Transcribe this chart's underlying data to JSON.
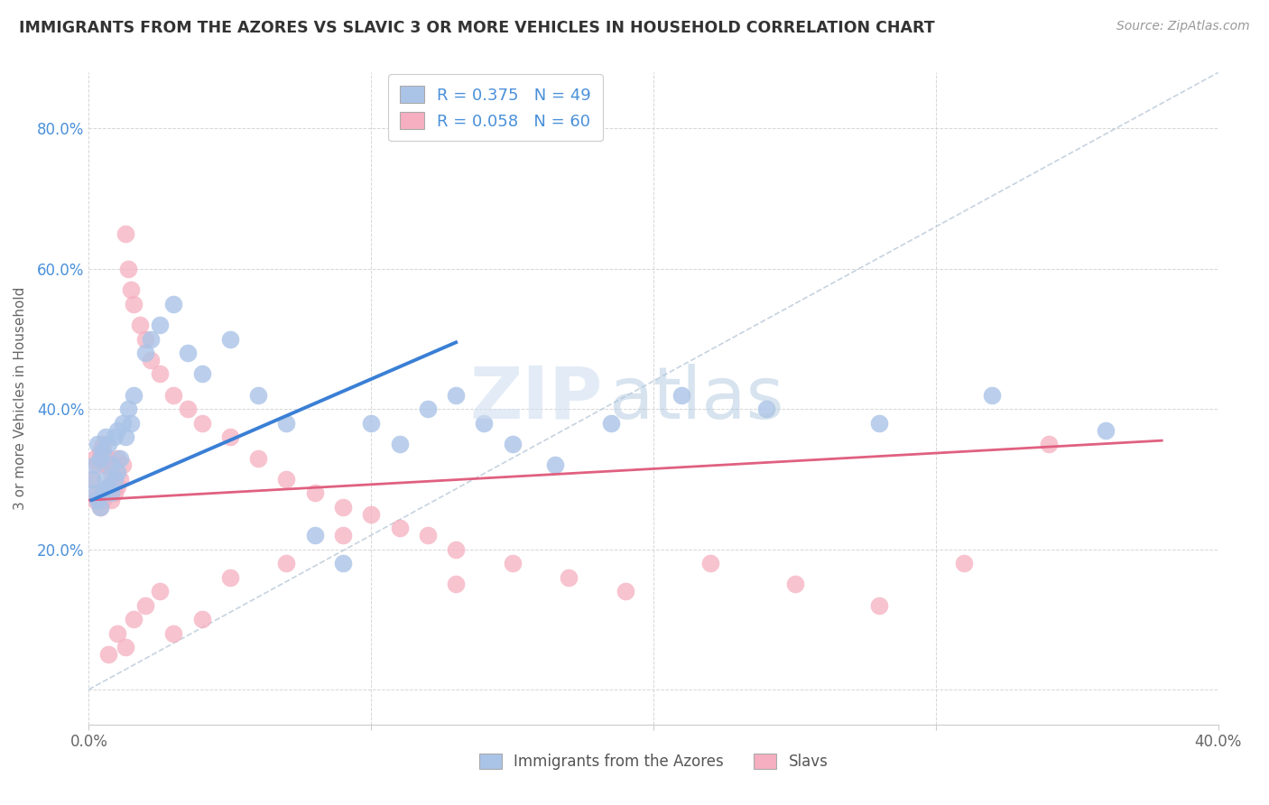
{
  "title": "IMMIGRANTS FROM THE AZORES VS SLAVIC 3 OR MORE VEHICLES IN HOUSEHOLD CORRELATION CHART",
  "source": "Source: ZipAtlas.com",
  "ylabel": "3 or more Vehicles in Household",
  "xlim": [
    0.0,
    0.4
  ],
  "ylim": [
    -0.05,
    0.88
  ],
  "xticks": [
    0.0,
    0.1,
    0.2,
    0.3,
    0.4
  ],
  "xticklabels": [
    "0.0%",
    "",
    "",
    "",
    "40.0%"
  ],
  "yticks": [
    0.0,
    0.2,
    0.4,
    0.6,
    0.8
  ],
  "yticklabels": [
    "",
    "20.0%",
    "40.0%",
    "60.0%",
    "80.0%"
  ],
  "color_azores": "#aac4e8",
  "color_slavic": "#f5afc0",
  "line_color_azores": "#3a7fd5",
  "line_color_slavic": "#e06080",
  "line_color_diagonal": "#b8c8d8",
  "watermark_zip": "ZIP",
  "watermark_atlas": "atlas",
  "azores_x": [
    0.001,
    0.002,
    0.002,
    0.003,
    0.003,
    0.004,
    0.004,
    0.005,
    0.005,
    0.006,
    0.006,
    0.007,
    0.007,
    0.008,
    0.008,
    0.009,
    0.009,
    0.01,
    0.01,
    0.011,
    0.012,
    0.013,
    0.014,
    0.015,
    0.016,
    0.02,
    0.022,
    0.025,
    0.03,
    0.035,
    0.04,
    0.05,
    0.06,
    0.07,
    0.08,
    0.09,
    0.1,
    0.11,
    0.12,
    0.13,
    0.14,
    0.15,
    0.165,
    0.185,
    0.21,
    0.24,
    0.28,
    0.32,
    0.36
  ],
  "azores_y": [
    0.3,
    0.28,
    0.32,
    0.27,
    0.35,
    0.26,
    0.33,
    0.28,
    0.34,
    0.3,
    0.36,
    0.29,
    0.35,
    0.28,
    0.32,
    0.3,
    0.36,
    0.31,
    0.37,
    0.33,
    0.38,
    0.36,
    0.4,
    0.38,
    0.42,
    0.48,
    0.5,
    0.52,
    0.55,
    0.48,
    0.45,
    0.5,
    0.42,
    0.38,
    0.22,
    0.18,
    0.38,
    0.35,
    0.4,
    0.42,
    0.38,
    0.35,
    0.32,
    0.38,
    0.42,
    0.4,
    0.38,
    0.42,
    0.37
  ],
  "slavic_x": [
    0.001,
    0.002,
    0.002,
    0.003,
    0.003,
    0.004,
    0.004,
    0.005,
    0.005,
    0.006,
    0.006,
    0.007,
    0.007,
    0.008,
    0.008,
    0.009,
    0.01,
    0.01,
    0.011,
    0.012,
    0.013,
    0.014,
    0.015,
    0.016,
    0.018,
    0.02,
    0.022,
    0.025,
    0.03,
    0.035,
    0.04,
    0.05,
    0.06,
    0.07,
    0.08,
    0.09,
    0.1,
    0.11,
    0.12,
    0.13,
    0.15,
    0.17,
    0.19,
    0.22,
    0.25,
    0.28,
    0.31,
    0.34,
    0.007,
    0.01,
    0.013,
    0.016,
    0.02,
    0.025,
    0.03,
    0.04,
    0.05,
    0.07,
    0.09,
    0.13
  ],
  "slavic_y": [
    0.3,
    0.27,
    0.33,
    0.28,
    0.32,
    0.26,
    0.34,
    0.27,
    0.35,
    0.28,
    0.32,
    0.29,
    0.33,
    0.27,
    0.31,
    0.28,
    0.29,
    0.33,
    0.3,
    0.32,
    0.65,
    0.6,
    0.57,
    0.55,
    0.52,
    0.5,
    0.47,
    0.45,
    0.42,
    0.4,
    0.38,
    0.36,
    0.33,
    0.3,
    0.28,
    0.26,
    0.25,
    0.23,
    0.22,
    0.2,
    0.18,
    0.16,
    0.14,
    0.18,
    0.15,
    0.12,
    0.18,
    0.35,
    0.05,
    0.08,
    0.06,
    0.1,
    0.12,
    0.14,
    0.08,
    0.1,
    0.16,
    0.18,
    0.22,
    0.15
  ],
  "azores_line_x": [
    0.001,
    0.13
  ],
  "azores_line_y": [
    0.27,
    0.495
  ],
  "slavic_line_x": [
    0.0,
    0.38
  ],
  "slavic_line_y": [
    0.27,
    0.355
  ]
}
